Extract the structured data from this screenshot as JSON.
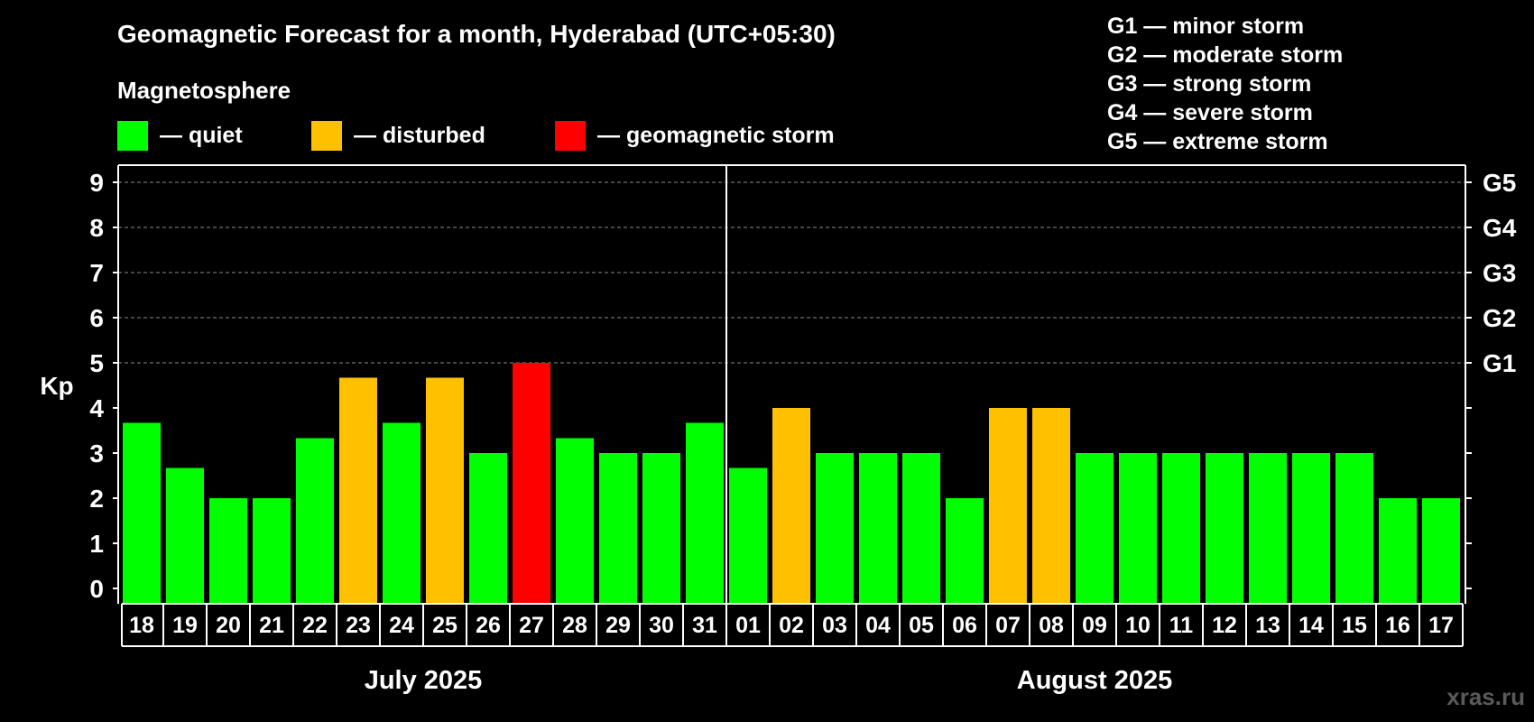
{
  "chart_data": {
    "type": "bar",
    "title": "Geomagnetic Forecast for a month, Hyderabad (UTC+05:30)",
    "ylabel": "Kp",
    "ylim": [
      0,
      9
    ],
    "yticks": [
      "0",
      "1",
      "2",
      "3",
      "4",
      "5",
      "6",
      "7",
      "8",
      "9"
    ],
    "right_ticks": [
      {
        "value": 5,
        "label": "G1"
      },
      {
        "value": 6,
        "label": "G2"
      },
      {
        "value": 7,
        "label": "G3"
      },
      {
        "value": 8,
        "label": "G4"
      },
      {
        "value": 9,
        "label": "G5"
      }
    ],
    "categories": [
      "18",
      "19",
      "20",
      "21",
      "22",
      "23",
      "24",
      "25",
      "26",
      "27",
      "28",
      "29",
      "30",
      "31",
      "01",
      "02",
      "03",
      "04",
      "05",
      "06",
      "07",
      "08",
      "09",
      "10",
      "11",
      "12",
      "13",
      "14",
      "15",
      "16",
      "17"
    ],
    "values": [
      3.67,
      2.67,
      2,
      2,
      3.33,
      4.67,
      3.67,
      4.67,
      3,
      5,
      3.33,
      3,
      3,
      3.67,
      2.67,
      4,
      3,
      3,
      3,
      2,
      4,
      4,
      3,
      3,
      3,
      3,
      3,
      3,
      3,
      2,
      2
    ],
    "status": [
      "quiet",
      "quiet",
      "quiet",
      "quiet",
      "quiet",
      "disturbed",
      "quiet",
      "disturbed",
      "quiet",
      "storm",
      "quiet",
      "quiet",
      "quiet",
      "quiet",
      "quiet",
      "disturbed",
      "quiet",
      "quiet",
      "quiet",
      "quiet",
      "disturbed",
      "disturbed",
      "quiet",
      "quiet",
      "quiet",
      "quiet",
      "quiet",
      "quiet",
      "quiet",
      "quiet",
      "quiet"
    ],
    "months": [
      {
        "label": "July 2025",
        "count": 14
      },
      {
        "label": "August 2025",
        "count": 17
      }
    ],
    "legend": {
      "title": "Magnetosphere",
      "items": [
        {
          "key": "quiet",
          "label": "— quiet",
          "color": "#00ff00"
        },
        {
          "key": "disturbed",
          "label": "— disturbed",
          "color": "#ffc000"
        },
        {
          "key": "storm",
          "label": "— geomagnetic storm",
          "color": "#ff0000"
        }
      ]
    },
    "storm_scale": [
      "G1 — minor storm",
      "G2 — moderate storm",
      "G3 — strong storm",
      "G4 — severe storm",
      "G5 — extreme storm"
    ],
    "grid": true
  },
  "watermark": "xras.ru"
}
